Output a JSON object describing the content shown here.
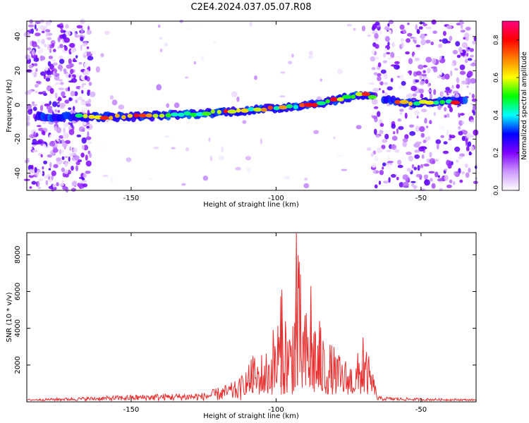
{
  "title": "C2E4.2024.037.05.07.R08",
  "chart_data": [
    {
      "type": "heatmap",
      "xlabel": "Height of straight line (km)",
      "ylabel": "Frequency (Hz)",
      "xlim": [
        -186,
        -31
      ],
      "ylim": [
        -50,
        49
      ],
      "xticks": [
        -150,
        -100,
        -50
      ],
      "yticks": [
        -40,
        -20,
        0,
        20,
        40
      ],
      "colorbar": {
        "label": "Normalized spectral amplitude",
        "range": [
          0,
          0.9
        ],
        "ticks": [
          0.0,
          0.2,
          0.4,
          0.6,
          0.8
        ],
        "tick_labels": [
          "0.0",
          "0.2",
          "0.4",
          "0.6",
          "0.8"
        ],
        "colors": [
          "#ffffff",
          "#cc99ff",
          "#8000ff",
          "#0000ff",
          "#00ffff",
          "#00ff00",
          "#ffff00",
          "#ff8000",
          "#ff0000",
          "#ff0080"
        ]
      },
      "ridge": {
        "description_points": [
          {
            "x": -178,
            "y": -7
          },
          {
            "x": -150,
            "y": -7
          },
          {
            "x": -125,
            "y": -5
          },
          {
            "x": -100,
            "y": -2
          },
          {
            "x": -85,
            "y": 1
          },
          {
            "x": -70,
            "y": 6
          },
          {
            "x": -55,
            "y": 1
          },
          {
            "x": -40,
            "y": 2
          }
        ]
      }
    },
    {
      "type": "line",
      "xlabel": "Height of straight line (km)",
      "ylabel": "SNR (10 * v/v)",
      "xlim": [
        -186,
        -31
      ],
      "ylim": [
        0,
        9200
      ],
      "xticks": [
        -150,
        -100,
        -50
      ],
      "yticks": [
        2000,
        4000,
        6000,
        8000
      ],
      "series_color": "#e83030",
      "envelope": [
        {
          "x": -186,
          "y": 150
        },
        {
          "x": -160,
          "y": 300
        },
        {
          "x": -140,
          "y": 450
        },
        {
          "x": -125,
          "y": 500
        },
        {
          "x": -118,
          "y": 900
        },
        {
          "x": -113,
          "y": 1200
        },
        {
          "x": -108,
          "y": 2500
        },
        {
          "x": -103,
          "y": 3000
        },
        {
          "x": -98,
          "y": 6100
        },
        {
          "x": -95,
          "y": 4500
        },
        {
          "x": -93,
          "y": 9200
        },
        {
          "x": -90,
          "y": 5000
        },
        {
          "x": -88,
          "y": 6300
        },
        {
          "x": -85,
          "y": 4200
        },
        {
          "x": -82,
          "y": 3500
        },
        {
          "x": -78,
          "y": 2600
        },
        {
          "x": -73,
          "y": 2200
        },
        {
          "x": -70,
          "y": 3500
        },
        {
          "x": -67,
          "y": 2000
        },
        {
          "x": -65,
          "y": 300
        },
        {
          "x": -60,
          "y": 250
        },
        {
          "x": -50,
          "y": 200
        },
        {
          "x": -31,
          "y": 150
        }
      ]
    }
  ]
}
